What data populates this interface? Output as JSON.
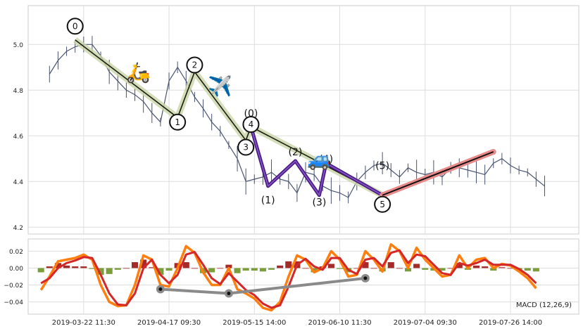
{
  "chart_data": [
    {
      "type": "line",
      "panel": "price",
      "ylim": [
        4.17,
        5.17
      ],
      "yticks": [
        4.2,
        4.4,
        4.6,
        4.8,
        5.0
      ],
      "ytick_labels": [
        "4.2",
        "4.4",
        "4.6",
        "4.8",
        "5.0"
      ],
      "grid": true,
      "series": [
        {
          "role": "price",
          "color": "#4a5470",
          "x": [
            0.5,
            1,
            1.5,
            2,
            2.5,
            3,
            3.5,
            4,
            4.5,
            5,
            5.5,
            6,
            6.5,
            7,
            7.5,
            8,
            8.5,
            9,
            9.5,
            10,
            10.5,
            11,
            11.5,
            12,
            12.5,
            13,
            13.5,
            14,
            14.5,
            15,
            15.5,
            16,
            16.5,
            17,
            17.5,
            18,
            18.5,
            19,
            19.5,
            20,
            20.5,
            21,
            21.5,
            22,
            22.5,
            23,
            23.5,
            24,
            24.5,
            25,
            25.5,
            26,
            26.5,
            27,
            27.5,
            28,
            28.5,
            29,
            29.5
          ],
          "values": [
            4.87,
            4.93,
            4.97,
            4.99,
            5.0,
            5.0,
            4.95,
            4.88,
            4.84,
            4.8,
            4.78,
            4.75,
            4.7,
            4.66,
            4.84,
            4.9,
            4.84,
            4.77,
            4.72,
            4.66,
            4.62,
            4.56,
            4.5,
            4.4,
            4.41,
            4.42,
            4.44,
            4.41,
            4.4,
            4.35,
            4.44,
            4.43,
            4.38,
            4.36,
            4.35,
            4.33,
            4.4,
            4.44,
            4.47,
            4.48,
            4.45,
            4.42,
            4.46,
            4.44,
            4.43,
            4.44,
            4.42,
            4.46,
            4.46,
            4.45,
            4.44,
            4.43,
            4.48,
            4.5,
            4.47,
            4.45,
            4.44,
            4.41,
            4.38
          ]
        }
      ],
      "waves_major": {
        "labels": [
          "0",
          "1",
          "2",
          "3",
          "4",
          "5"
        ],
        "x": [
          2,
          8,
          9,
          12,
          12.3,
          20
        ],
        "values": [
          5.02,
          4.68,
          4.88,
          4.58,
          4.64,
          4.34
        ],
        "label_values": [
          5.08,
          4.66,
          4.91,
          4.55,
          4.65,
          4.3
        ]
      },
      "waves_minor": {
        "labels": [
          "(0)",
          "(1)",
          "(2)",
          "(3)",
          "(4)",
          "(5)"
        ],
        "x": [
          12.3,
          13.3,
          14.9,
          16.3,
          16.7,
          20
        ],
        "values": [
          4.64,
          4.38,
          4.49,
          4.34,
          4.48,
          4.34
        ],
        "label_values": [
          4.7,
          4.32,
          4.53,
          4.31,
          4.5,
          4.47
        ]
      },
      "trend": {
        "x": [
          20,
          26.5
        ],
        "values": [
          4.34,
          4.53
        ]
      },
      "emoji": [
        {
          "icon": "scooter-icon",
          "glyph": "🛵",
          "x": 5.7,
          "value": 4.88
        },
        {
          "icon": "airplane-icon",
          "glyph": "✈️",
          "x": 10.5,
          "value": 4.82
        },
        {
          "icon": "car-icon",
          "glyph": "🚙",
          "x": 16.3,
          "value": 4.5
        }
      ]
    },
    {
      "type": "line",
      "panel": "macd",
      "ylim": [
        -0.0545,
        0.0345
      ],
      "yticks": [
        -0.04,
        -0.02,
        0.0,
        0.02
      ],
      "ytick_labels": [
        "−0.04",
        "−0.02",
        "0.00",
        "0.02"
      ],
      "xtick_labels": [
        "2019-03-22 11:30",
        "2019-04-17 09:30",
        "2019-05-15 14:00",
        "2019-06-10 11:30",
        "2019-07-04 09:30",
        "2019-07-26 14:00"
      ],
      "xticks": [
        2.5,
        7.5,
        12.5,
        17.5,
        22.5,
        27.5
      ],
      "xlim": [
        -0.75,
        31.5
      ],
      "legend_label": "MACD (12,26,9)",
      "grid": true,
      "series": [
        {
          "role": "macd",
          "color": "#ff7f0e",
          "x": [
            0,
            0.5,
            1,
            1.5,
            2,
            2.5,
            3,
            3.5,
            4,
            4.5,
            5,
            5.5,
            6,
            6.5,
            7,
            7.5,
            8,
            8.5,
            9,
            9.5,
            10,
            10.5,
            11,
            11.5,
            12,
            12.5,
            13,
            13.5,
            14,
            14.5,
            15,
            15.5,
            16,
            16.5,
            17,
            17.5,
            18,
            18.5,
            19,
            19.5,
            20,
            20.5,
            21,
            21.5,
            22,
            22.5,
            23,
            23.5,
            24,
            24.5,
            25,
            25.5,
            26,
            26.5,
            27,
            27.5,
            28,
            28.5,
            29
          ],
          "values": [
            -0.026,
            -0.01,
            0.008,
            0.01,
            0.012,
            0.016,
            0.01,
            -0.02,
            -0.04,
            -0.045,
            -0.044,
            -0.02,
            0.015,
            0.01,
            -0.02,
            -0.022,
            0.0,
            0.026,
            0.018,
            -0.005,
            -0.02,
            -0.02,
            0.0,
            -0.025,
            -0.03,
            -0.036,
            -0.047,
            -0.05,
            -0.04,
            -0.01,
            0.015,
            0.01,
            -0.005,
            0.0,
            0.02,
            0.01,
            -0.01,
            -0.008,
            0.02,
            0.01,
            -0.004,
            0.028,
            0.02,
            0.0,
            0.024,
            0.01,
            0.0,
            -0.01,
            -0.008,
            0.015,
            0.0,
            0.01,
            0.012,
            0.0,
            0.005,
            0.003,
            -0.004,
            -0.012,
            -0.024
          ]
        },
        {
          "role": "signal",
          "color": "#d62728",
          "x": [
            0,
            0.5,
            1,
            1.5,
            2,
            2.5,
            3,
            3.5,
            4,
            4.5,
            5,
            5.5,
            6,
            6.5,
            7,
            7.5,
            8,
            8.5,
            9,
            9.5,
            10,
            10.5,
            11,
            11.5,
            12,
            12.5,
            13,
            13.5,
            14,
            14.5,
            15,
            15.5,
            16,
            16.5,
            17,
            17.5,
            18,
            18.5,
            19,
            19.5,
            20,
            20.5,
            21,
            21.5,
            22,
            22.5,
            23,
            23.5,
            24,
            24.5,
            25,
            25.5,
            26,
            26.5,
            27,
            27.5,
            28,
            28.5,
            29
          ],
          "values": [
            -0.018,
            -0.012,
            0.0,
            0.006,
            0.009,
            0.013,
            0.012,
            -0.008,
            -0.03,
            -0.043,
            -0.044,
            -0.03,
            0.0,
            0.01,
            -0.008,
            -0.018,
            -0.008,
            0.016,
            0.019,
            0.004,
            -0.012,
            -0.019,
            -0.006,
            -0.016,
            -0.026,
            -0.032,
            -0.042,
            -0.047,
            -0.044,
            -0.022,
            0.004,
            0.011,
            0.002,
            -0.002,
            0.012,
            0.012,
            -0.002,
            -0.007,
            0.01,
            0.012,
            0.002,
            0.018,
            0.021,
            0.006,
            0.016,
            0.014,
            0.004,
            -0.006,
            -0.008,
            0.006,
            0.003,
            0.006,
            0.01,
            0.004,
            0.004,
            0.004,
            -0.001,
            -0.008,
            -0.018
          ]
        },
        {
          "role": "histogram",
          "color_positive": "#a52a2a",
          "color_negative": "#7a9e3b",
          "x": [
            0,
            0.5,
            1,
            1.5,
            2,
            2.5,
            3,
            3.5,
            4,
            4.5,
            5,
            5.5,
            6,
            6.5,
            7,
            7.5,
            8,
            8.5,
            9,
            9.5,
            10,
            10.5,
            11,
            11.5,
            12,
            12.5,
            13,
            13.5,
            14,
            14.5,
            15,
            15.5,
            16,
            16.5,
            17,
            17.5,
            18,
            18.5,
            19,
            19.5,
            20,
            20.5,
            21,
            21.5,
            22,
            22.5,
            23,
            23.5,
            24,
            24.5,
            25,
            25.5,
            26,
            26.5,
            27,
            27.5,
            28,
            28.5,
            29
          ],
          "values": [
            -0.005,
            0.002,
            0.006,
            0.003,
            0.002,
            0.002,
            -0.001,
            -0.008,
            -0.007,
            -0.002,
            0.0,
            0.007,
            0.01,
            0.001,
            -0.008,
            -0.003,
            0.006,
            0.007,
            0.0,
            -0.006,
            -0.005,
            0.0,
            0.004,
            -0.006,
            -0.003,
            -0.003,
            -0.004,
            -0.002,
            0.003,
            0.008,
            0.008,
            0.0,
            -0.005,
            0.002,
            0.005,
            -0.001,
            -0.005,
            0.0,
            0.007,
            0.0,
            -0.004,
            0.007,
            0.0,
            -0.004,
            0.005,
            -0.002,
            -0.003,
            -0.003,
            0.0,
            0.006,
            -0.002,
            0.003,
            0.002,
            -0.003,
            0.001,
            0.0,
            -0.002,
            -0.003,
            -0.004
          ]
        }
      ],
      "divergence": {
        "x": [
          7,
          11,
          19
        ],
        "values": [
          -0.025,
          -0.03,
          -0.012
        ]
      }
    }
  ]
}
